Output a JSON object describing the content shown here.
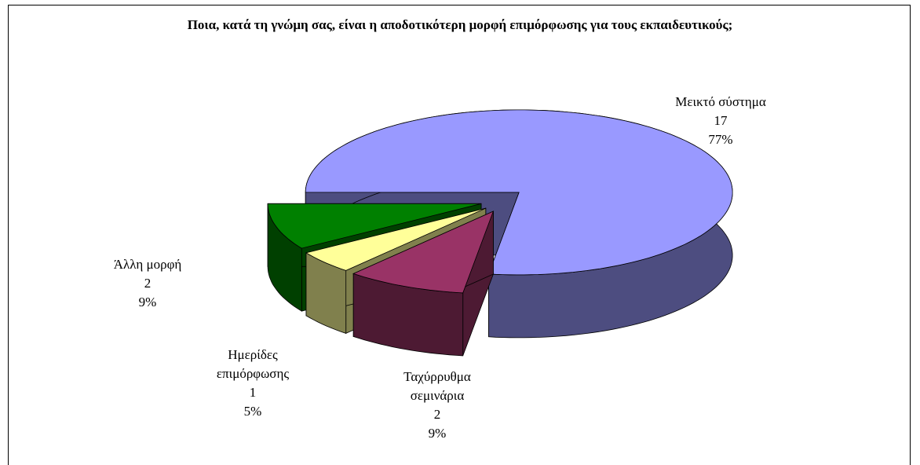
{
  "chart_data": {
    "type": "pie3d",
    "title": "Ποια, κατά τη γνώμη σας, είναι η αποδοτικότερη μορφή επιμόρφωσης για τους εκπαιδευτικούς;",
    "categories": [
      "Μεικτό σύστημα",
      "Ταχύρρυθμα σεμινάρια",
      "Ημερίδες επιμόρφωσης",
      "Άλλη μορφή"
    ],
    "values": [
      17,
      2,
      1,
      2
    ],
    "percent_labels": [
      "77%",
      "9%",
      "5%",
      "9%"
    ],
    "colors": [
      "#9999ff",
      "#993366",
      "#ffff99",
      "#008000"
    ]
  }
}
